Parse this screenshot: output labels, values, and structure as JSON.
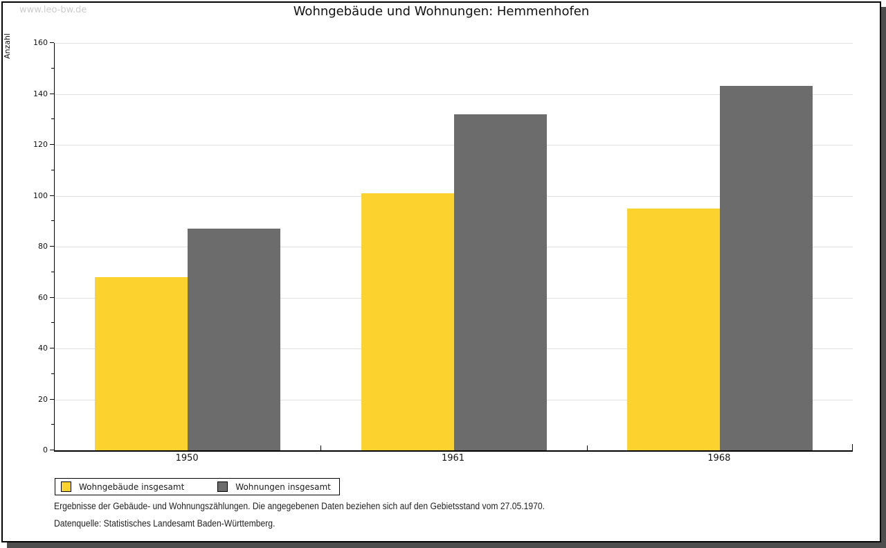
{
  "watermark": "www.leo-bw.de",
  "title": "Wohngebäude und Wohnungen: Hemmenhofen",
  "chart_data": {
    "type": "bar",
    "title": "Wohngebäude und Wohnungen: Hemmenhofen",
    "categories": [
      "1950",
      "1961",
      "1968"
    ],
    "series": [
      {
        "name": "Wohngebäude insgesamt",
        "color": "#fcd32e",
        "values": [
          68,
          101,
          95
        ]
      },
      {
        "name": "Wohnungen insgesamt",
        "color": "#6c6c6c",
        "values": [
          87,
          132,
          143
        ]
      }
    ],
    "xlabel": "",
    "ylabel": "Anzahl",
    "ylim": [
      0,
      160
    ],
    "ytick_step": 20,
    "yminor_step": 10,
    "grid": true,
    "legend_position": "bottom-left"
  },
  "footnotes": {
    "line1": "Ergebnisse der Gebäude- und Wohnungszählungen. Die angegebenen Daten beziehen sich auf den Gebietsstand vom 27.05.1970.",
    "line2": "Datenquelle: Statistisches Landesamt Baden-Württemberg."
  },
  "colors": {
    "bar_yellow": "#fcd32e",
    "bar_gray": "#6c6c6c",
    "gridline": "#e0e0e0",
    "watermark": "#cccccc",
    "frame_border": "#000000",
    "frame_shadow": "#4e4e4e"
  }
}
